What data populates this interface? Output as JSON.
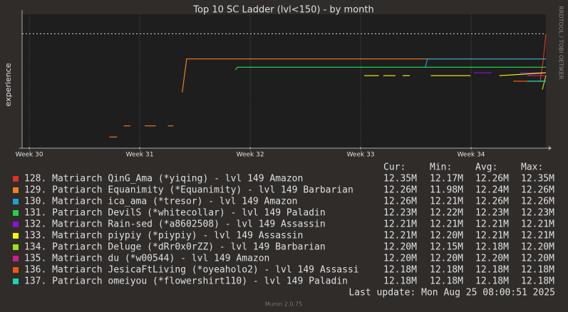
{
  "chart_data": {
    "type": "line",
    "title": "Top 10 SC Ladder (lvl<150) - by month",
    "y_label": "experience",
    "side_label": "RRDTOOL / TOBI OETIKER",
    "xlim": [
      29.935,
      34.677
    ],
    "xticks": [
      {
        "value": 30,
        "label": "Week 30"
      },
      {
        "value": 31,
        "label": "Week 31"
      },
      {
        "value": 32,
        "label": "Week 32"
      },
      {
        "value": 33,
        "label": "Week 33"
      },
      {
        "value": 34,
        "label": "Week 34"
      }
    ],
    "ylim": [
      11.94,
      12.42
    ],
    "grid": true,
    "threshold": 12.35,
    "stat_headers": [
      "Cur:",
      "Min:",
      "Avg:",
      "Max:"
    ],
    "series": [
      {
        "name": "128. Matriarch QinG_Ama (*yiqing) - lvl 149 Amazon",
        "color": "#e0301e",
        "x": [
          34.625,
          34.651,
          34.677
        ],
        "values": [
          12.18,
          12.25,
          12.35
        ],
        "stats": [
          12.35,
          12.17,
          12.26,
          12.35
        ],
        "stat_labels": [
          "12.35M",
          "12.17M",
          "12.26M",
          "12.35M"
        ]
      },
      {
        "name": "129. Patriarch Equanimity (*Equanimity) - lvl 149 Barbarian",
        "color": "#f27f1c",
        "x": [
          30.725,
          30.795,
          null,
          30.855,
          30.915,
          null,
          31.045,
          31.145,
          null,
          31.255,
          31.305,
          null,
          31.385,
          31.425,
          34.677
        ],
        "values": [
          11.98,
          11.98,
          null,
          12.02,
          12.02,
          null,
          12.02,
          12.02,
          null,
          12.02,
          12.02,
          null,
          12.14,
          12.26,
          12.26
        ],
        "stats": [
          12.26,
          11.98,
          12.24,
          12.26
        ],
        "stat_labels": [
          "12.26M",
          "11.98M",
          "12.24M",
          "12.26M"
        ]
      },
      {
        "name": "130. Matriarch ica_ama (*tresor) - lvl 149 Amazon",
        "color": "#1ba1d4",
        "x": [
          33.585,
          33.605,
          34.677
        ],
        "values": [
          12.23,
          12.26,
          12.26
        ],
        "stats": [
          12.26,
          12.21,
          12.26,
          12.26
        ],
        "stat_labels": [
          "12.26M",
          "12.21M",
          "12.26M",
          "12.26M"
        ]
      },
      {
        "name": "131. Patriarch DevilS (*whitecollar) - lvl 149 Paladin",
        "color": "#22d04a",
        "x": [
          31.865,
          31.885,
          34.677
        ],
        "values": [
          12.22,
          12.23,
          12.23
        ],
        "stats": [
          12.23,
          12.22,
          12.23,
          12.23
        ],
        "stat_labels": [
          "12.23M",
          "12.22M",
          "12.23M",
          "12.23M"
        ]
      },
      {
        "name": "132. Matriarch Rain-sed (*a8602508) - lvl 149 Assassin",
        "color": "#8b14d4",
        "x": [
          34.025,
          34.185,
          null,
          34.445,
          34.677
        ],
        "values": [
          12.21,
          12.21,
          null,
          12.21,
          12.21
        ],
        "stats": [
          12.21,
          12.21,
          12.21,
          12.21
        ],
        "stat_labels": [
          "12.21M",
          "12.21M",
          "12.21M",
          "12.21M"
        ]
      },
      {
        "name": "133. Matriarch piypiy (*piypiy) - lvl 149 Assassin",
        "color": "#f5f50f",
        "x": [
          33.032,
          33.165,
          null,
          33.205,
          33.315,
          null,
          33.38,
          33.445,
          null,
          33.635,
          33.995,
          null,
          34.255,
          34.677
        ],
        "values": [
          12.2,
          12.2,
          null,
          12.2,
          12.2,
          null,
          12.2,
          12.2,
          null,
          12.2,
          12.2,
          null,
          12.2,
          12.21
        ],
        "stats": [
          12.21,
          12.2,
          12.21,
          12.21
        ],
        "stat_labels": [
          "12.21M",
          "12.20M",
          "12.21M",
          "12.21M"
        ]
      },
      {
        "name": "134. Patriarch Deluge (*dRr0x0rZZ) - lvl 149 Barbarian",
        "color": "#9be21a",
        "x": [
          34.645,
          34.677
        ],
        "values": [
          12.15,
          12.2
        ],
        "stats": [
          12.2,
          12.15,
          12.18,
          12.2
        ],
        "stat_labels": [
          "12.20M",
          "12.15M",
          "12.18M",
          "12.20M"
        ]
      },
      {
        "name": "135. Matriarch du (*w00544) - lvl 149 Amazon",
        "color": "#d41b8c",
        "x": [
          34.51,
          34.677
        ],
        "values": [
          12.2,
          12.2
        ],
        "stats": [
          12.2,
          12.2,
          12.2,
          12.2
        ],
        "stat_labels": [
          "12.20M",
          "12.20M",
          "12.20M",
          "12.20M"
        ]
      },
      {
        "name": "136. Matriarch JesicaFtLiving (*oyeaholo2) - lvl 149 Assassi",
        "color": "#f0570f",
        "x": [
          34.38,
          34.677
        ],
        "values": [
          12.18,
          12.18
        ],
        "stats": [
          12.18,
          12.18,
          12.18,
          12.18
        ],
        "stat_labels": [
          "12.18M",
          "12.18M",
          "12.18M",
          "12.18M"
        ]
      },
      {
        "name": "137. Patriarch omeiyou (*flowershirt110) - lvl 149 Paladin",
        "color": "#17d6b0",
        "x": [
          34.51,
          34.677
        ],
        "values": [
          12.18,
          12.18
        ],
        "stats": [
          12.18,
          12.18,
          12.18,
          12.18
        ],
        "stat_labels": [
          "12.18M",
          "12.18M",
          "12.18M",
          "12.18M"
        ]
      }
    ],
    "last_update": "Last update: Mon Aug 25 08:00:51 2025",
    "footer": "Munin 2.0.75"
  }
}
